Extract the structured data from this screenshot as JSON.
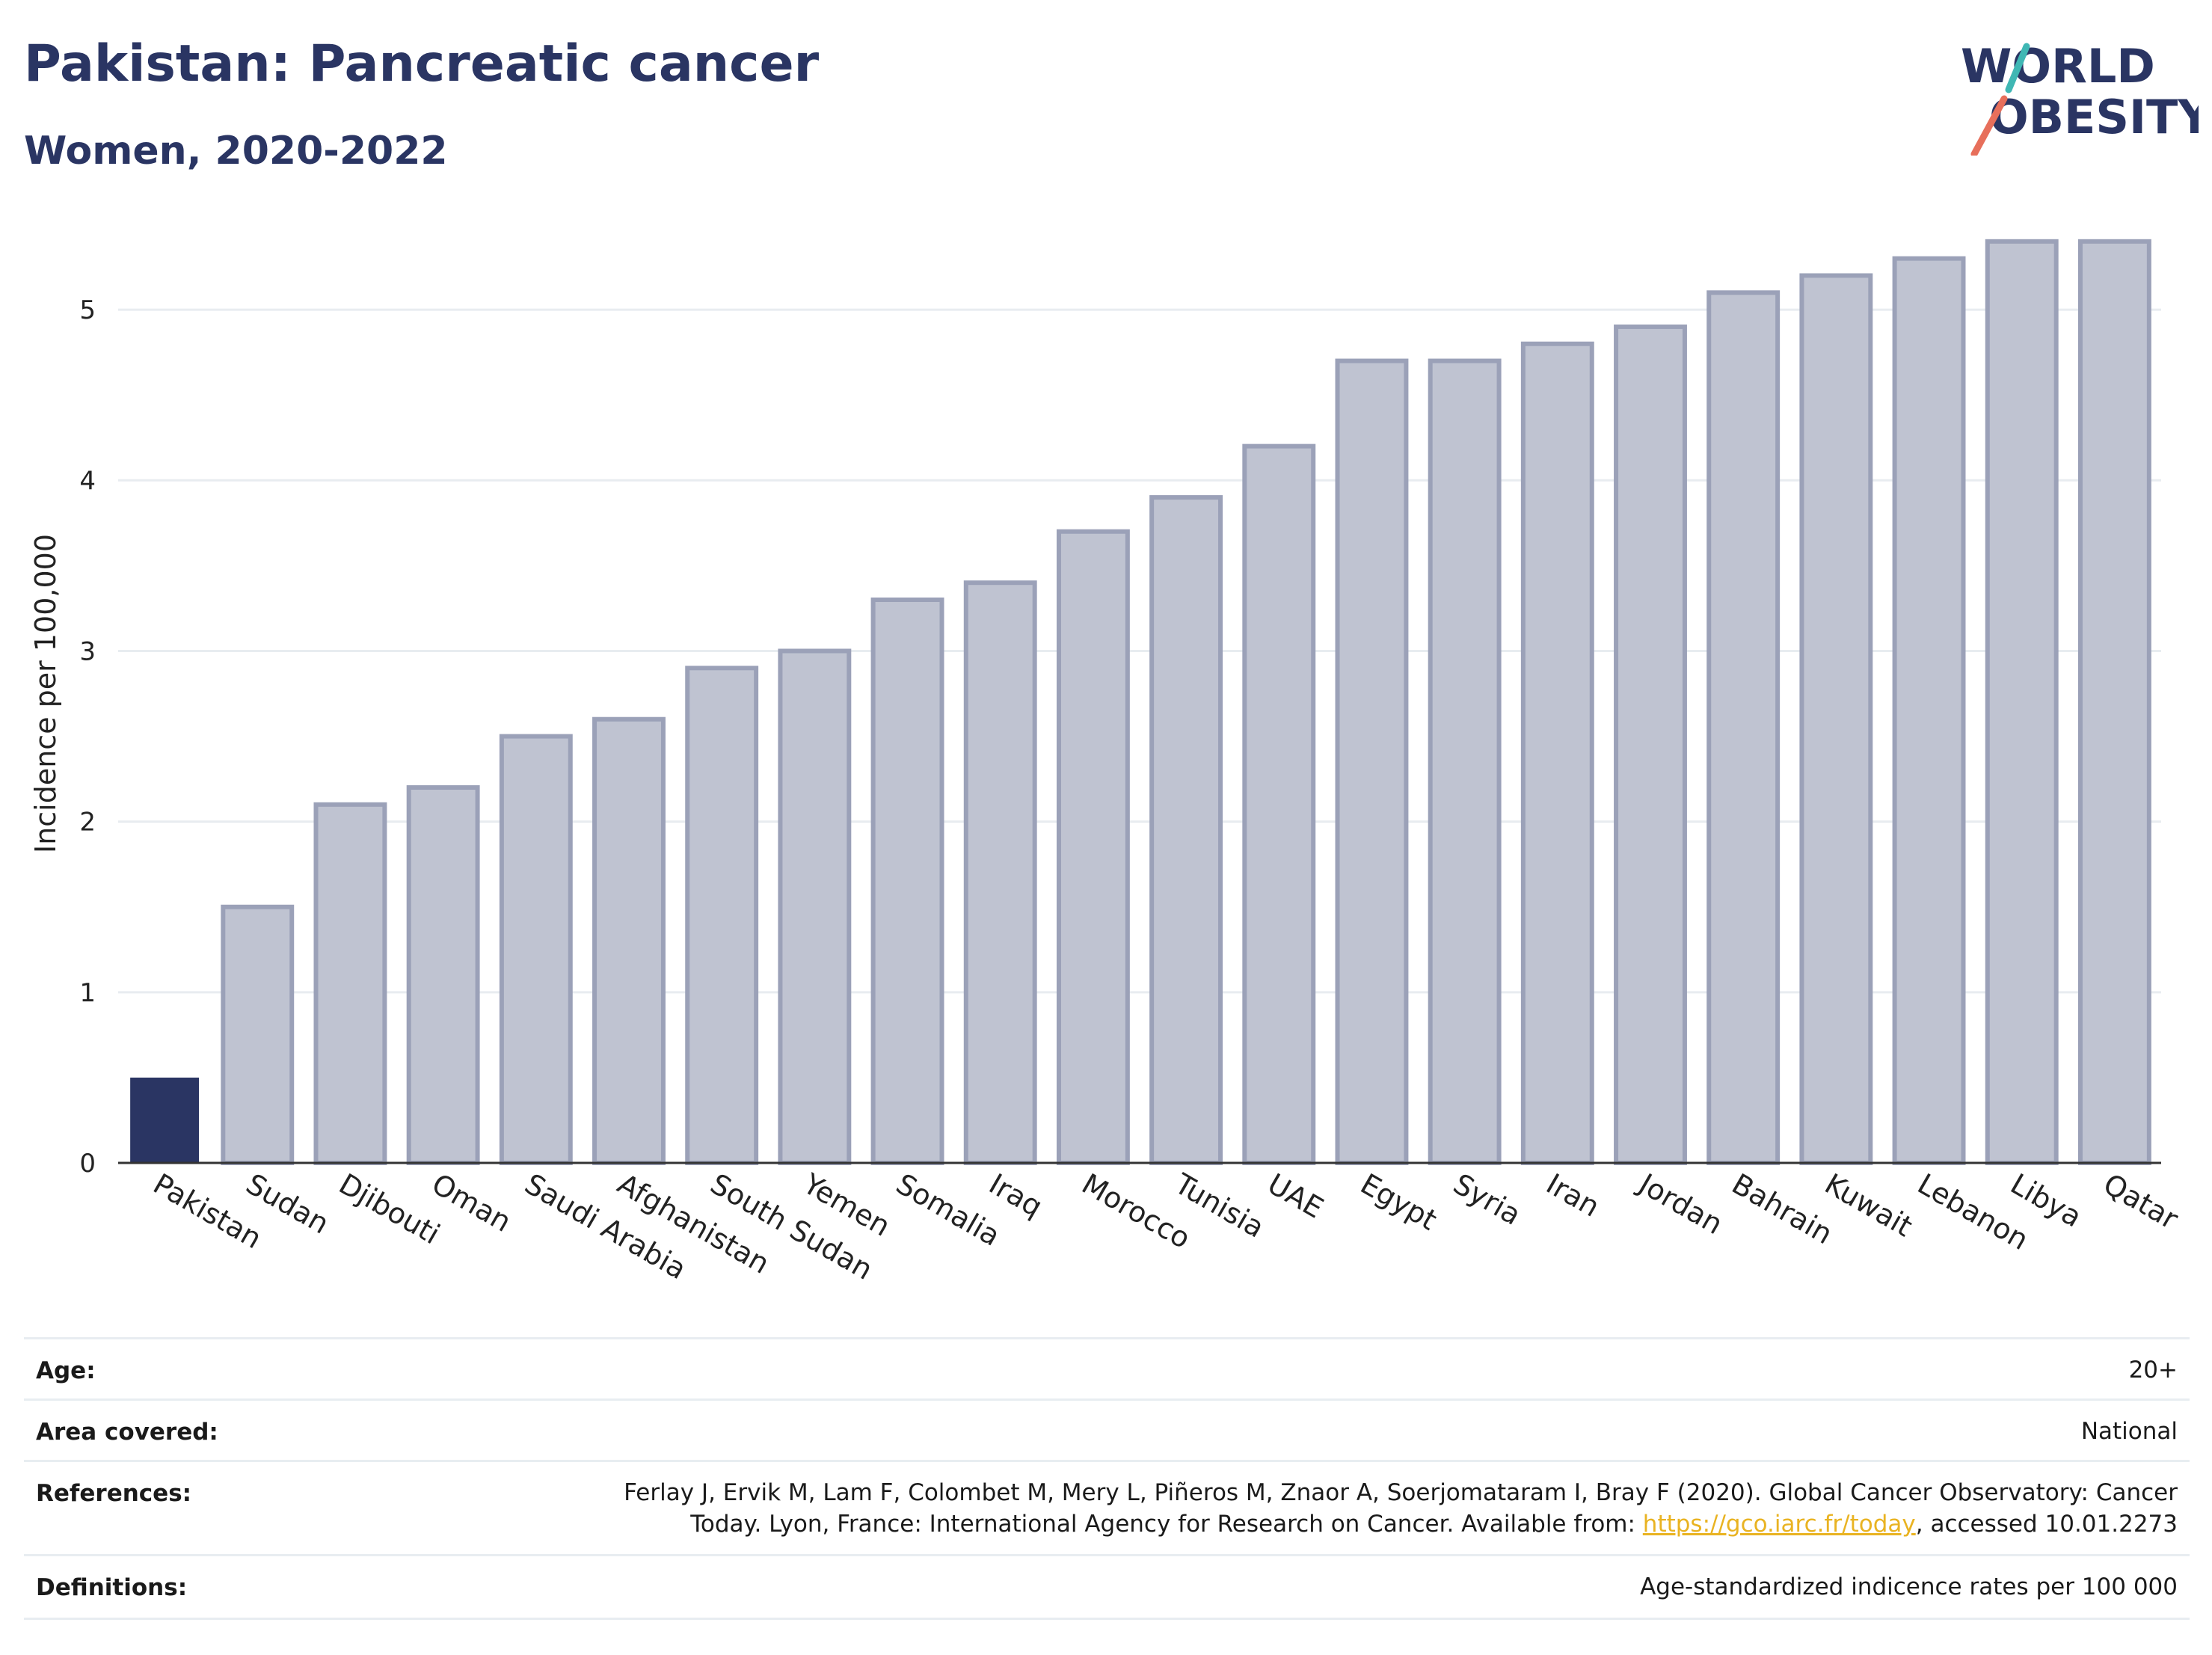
{
  "header": {
    "title": "Pakistan: Pancreatic cancer",
    "subtitle": "Women, 2020-2022"
  },
  "logo": {
    "line1": "WORLD",
    "line2": "OBESITY"
  },
  "chart_data": {
    "type": "bar",
    "ylabel": "Incidence per 100,000",
    "ylim": [
      0,
      5.5
    ],
    "yticks": [
      0,
      1,
      2,
      3,
      4,
      5
    ],
    "grid": true,
    "categories": [
      "Pakistan",
      "Sudan",
      "Djibouti",
      "Oman",
      "Saudi Arabia",
      "Afghanistan",
      "South Sudan",
      "Yemen",
      "Somalia",
      "Iraq",
      "Morocco",
      "Tunisia",
      "UAE",
      "Egypt",
      "Syria",
      "Iran",
      "Jordan",
      "Bahrain",
      "Kuwait",
      "Lebanon",
      "Libya",
      "Qatar"
    ],
    "values": [
      0.5,
      1.5,
      2.1,
      2.2,
      2.5,
      2.6,
      2.9,
      3.0,
      3.3,
      3.4,
      3.7,
      3.9,
      4.2,
      4.7,
      4.7,
      4.8,
      4.9,
      5.1,
      5.2,
      5.3,
      5.4,
      5.4
    ],
    "highlight": "Pakistan",
    "colors": {
      "highlight": "#2a3563",
      "other_fill": "#bfc3d1",
      "other_stroke": "#9ba1b8",
      "grid": "#e8ecf0",
      "axis": "#333333"
    }
  },
  "meta": {
    "age_label": "Age:",
    "age_value": "20+",
    "area_label": "Area covered:",
    "area_value": "National",
    "references_label": "References:",
    "references_line1": "Ferlay J, Ervik M, Lam F, Colombet M, Mery L, Piñeros M, Znaor A, Soerjomataram I, Bray F (2020). Global Cancer Observatory: Cancer",
    "references_line2_pre": "Today. Lyon, France: International Agency for Research on Cancer. Available from: ",
    "references_link": "https://gco.iarc.fr/today",
    "references_line2_post": ", accessed 10.01.2273",
    "definitions_label": "Definitions:",
    "definitions_value": "Age-standardized indicence rates per 100 000"
  }
}
